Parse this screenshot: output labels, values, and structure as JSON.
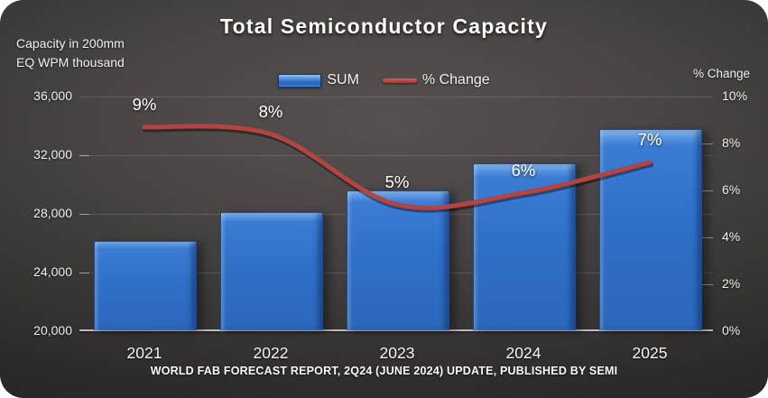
{
  "slide": {
    "title": "Total Semiconductor Capacity",
    "left_axis_title_line1": "Capacity in 200mm",
    "left_axis_title_line2": "EQ WPM thousand",
    "right_axis_title": "% Change",
    "caption": "WORLD FAB FORECAST REPORT, 2Q24 (JUNE 2024) UPDATE, PUBLISHED BY SEMI",
    "legend": {
      "sum_label": "SUM",
      "pct_change_label": "% Change"
    },
    "colors": {
      "background_center": "#555150",
      "background_edge": "#232222",
      "bar_fill": "#2f70c8",
      "bar_highlight": "#8fbdf2",
      "bar_border": "#1a4c8e",
      "line": "#b4443f",
      "gridline": "#5f5f5f",
      "axis_line": "#bdbdbd",
      "text": "#f2f2f2"
    }
  },
  "chart_data": {
    "type": "bar",
    "subtype": "combo-bar-line",
    "title": "Total Semiconductor Capacity",
    "xlabel": "",
    "ylabel_left": "Capacity in 200mm EQ WPM thousand",
    "ylabel_right": "% Change",
    "categories": [
      "2021",
      "2022",
      "2023",
      "2024",
      "2025"
    ],
    "series": [
      {
        "name": "SUM",
        "type": "bar",
        "axis": "left",
        "values": [
          26000,
          28000,
          29500,
          31350,
          33650
        ]
      },
      {
        "name": "% Change",
        "type": "line",
        "axis": "right",
        "values": [
          8.7,
          8.4,
          5.4,
          5.9,
          7.2
        ],
        "labels": [
          "9%",
          "8%",
          "5%",
          "6%",
          "7%"
        ]
      }
    ],
    "left_axis": {
      "min": 20000,
      "max": 36000,
      "ticks": [
        "36,000",
        "32,000",
        "28,000",
        "24,000",
        "20,000"
      ]
    },
    "right_axis": {
      "min": 0,
      "max": 10,
      "ticks": [
        "10%",
        "8%",
        "6%",
        "4%",
        "2%",
        "0%"
      ]
    },
    "grid": true,
    "legend_position": "top-center"
  }
}
